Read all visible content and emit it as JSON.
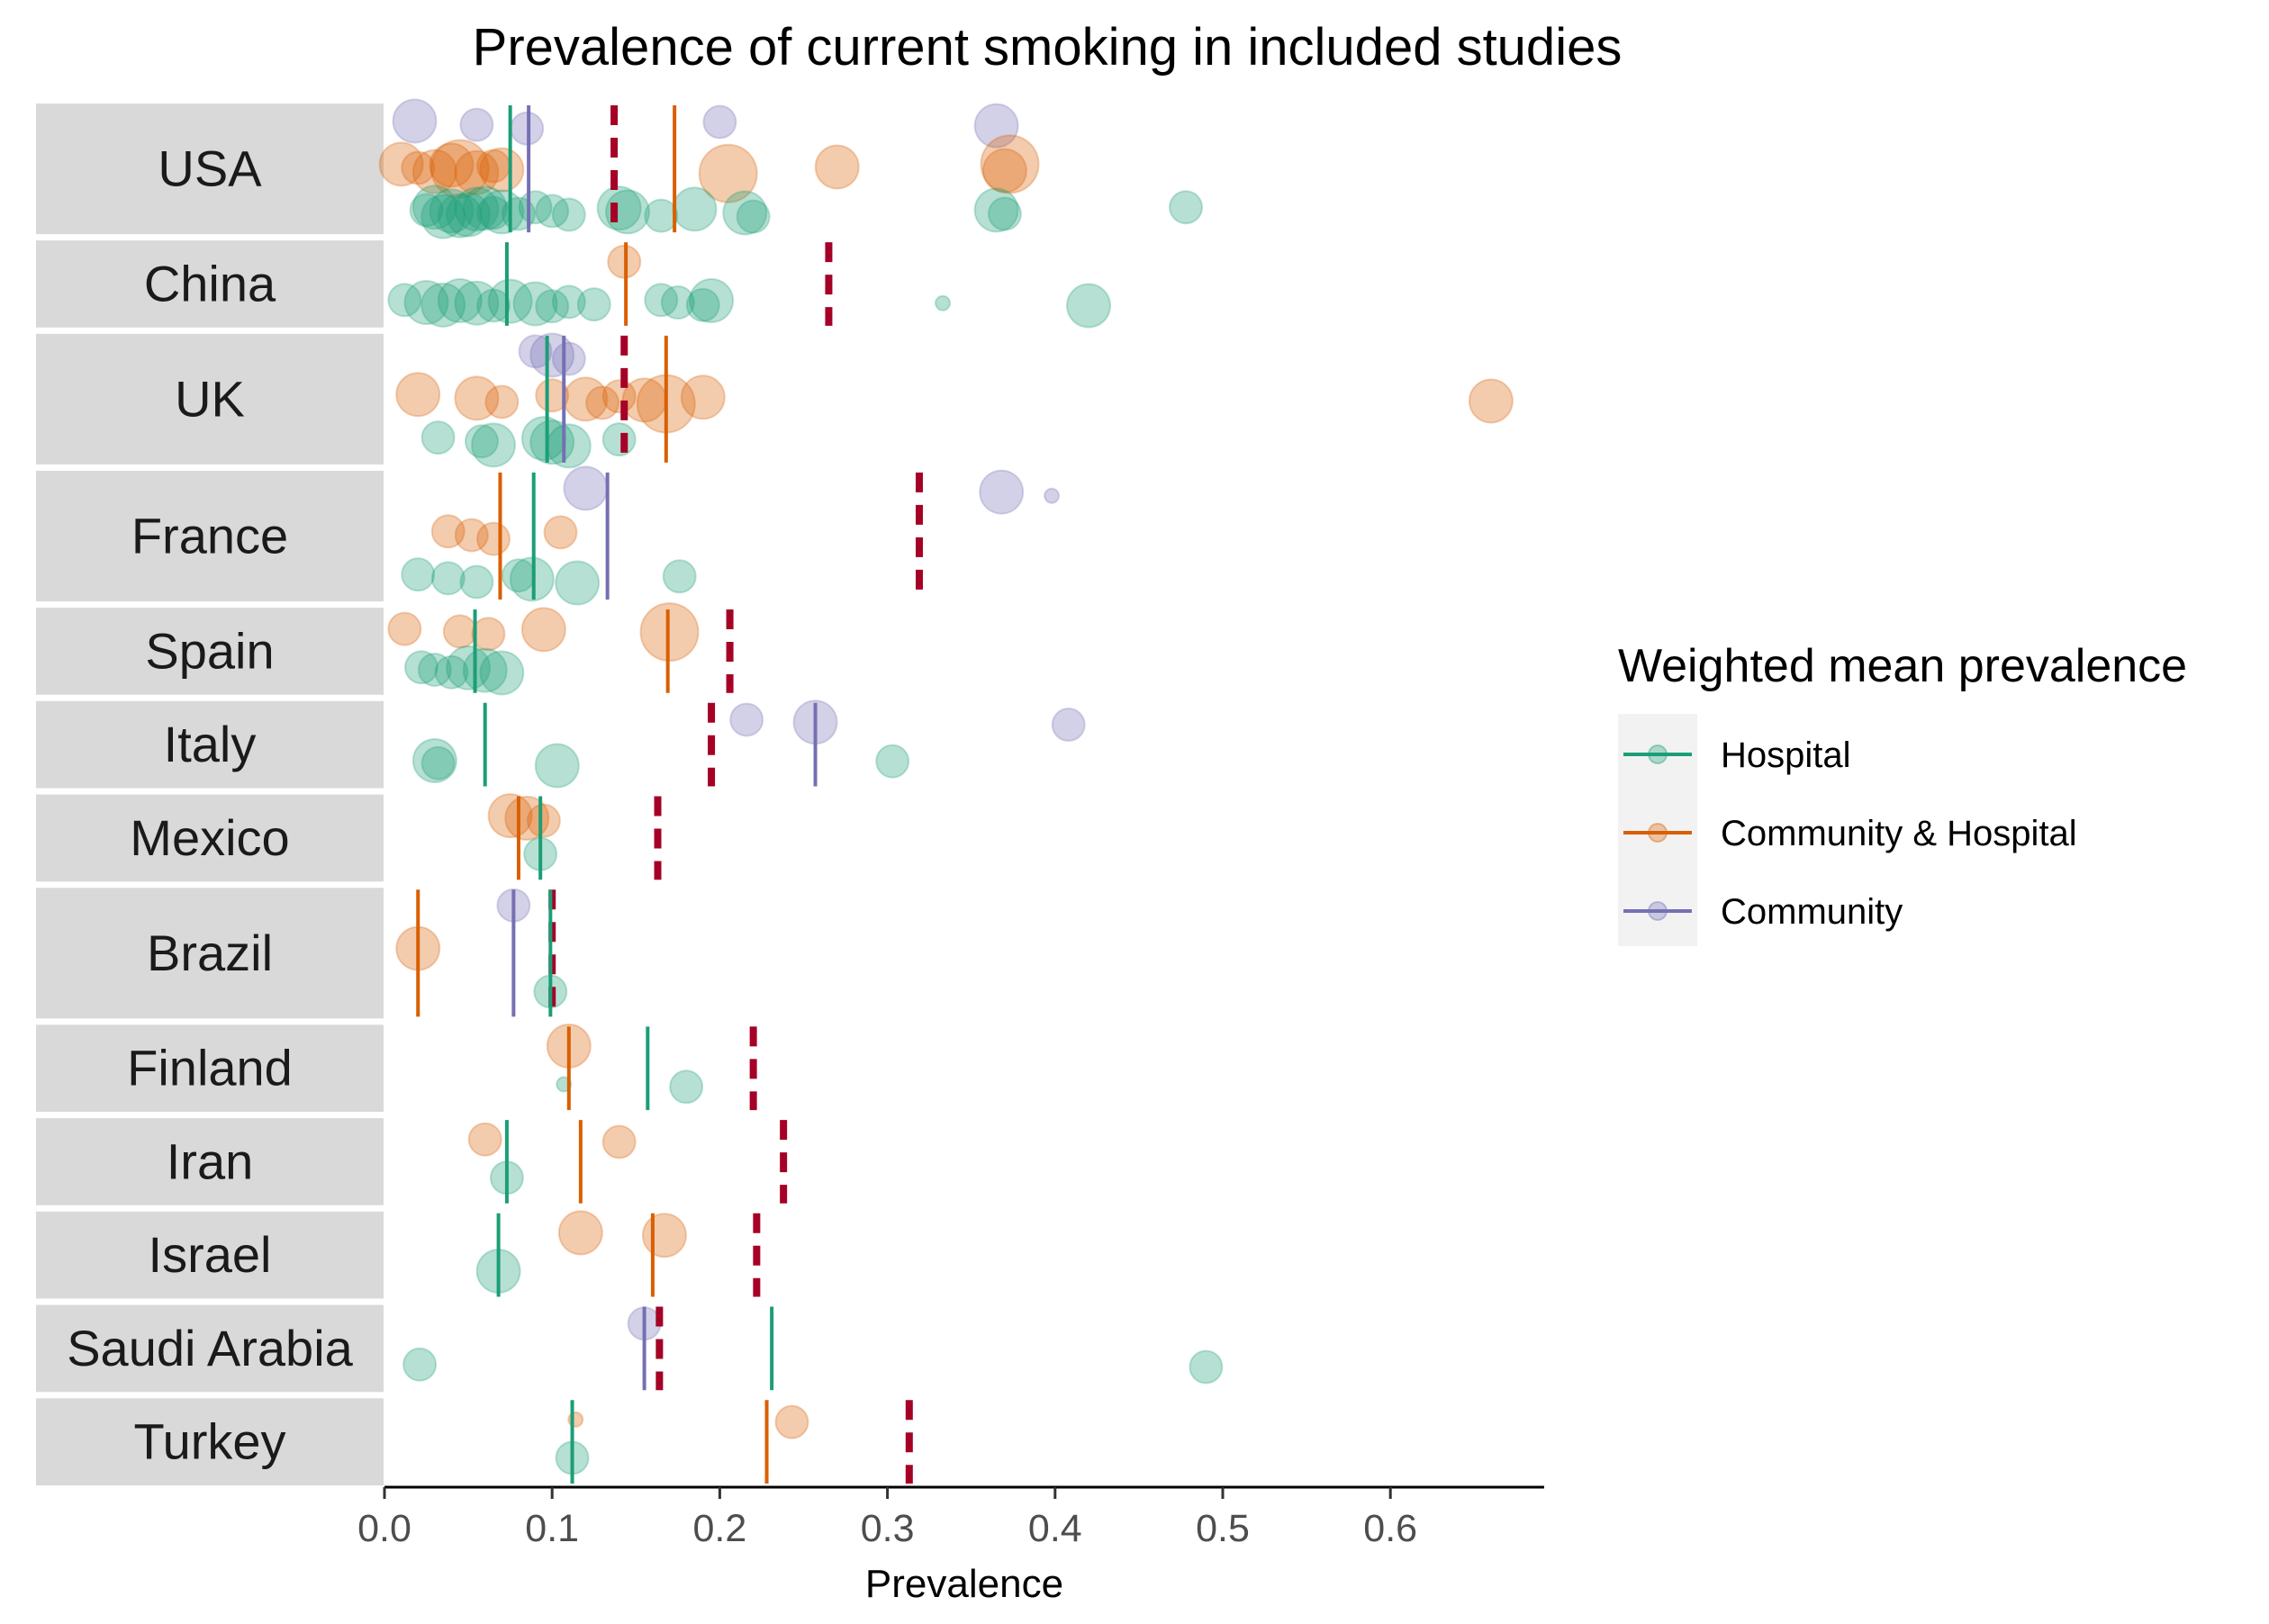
{
  "chart_data": {
    "type": "scatter",
    "title": "Prevalence of current smoking in included studies",
    "xlabel": "Prevalence",
    "ylabel": "",
    "xlim": [
      0,
      0.69
    ],
    "x_ticks": [
      "0.0",
      "0.1",
      "0.2",
      "0.3",
      "0.4",
      "0.5",
      "0.6"
    ],
    "x_tick_values": [
      0,
      0.1,
      0.2,
      0.3,
      0.4,
      0.5,
      0.6
    ],
    "grid": false,
    "legend": {
      "title": "Weighted mean prevalence",
      "position": "right",
      "entries": [
        {
          "label": "Hospital",
          "series": "hospital"
        },
        {
          "label": "Community & Hospital",
          "series": "community_hospital"
        },
        {
          "label": "Community",
          "series": "community"
        }
      ]
    },
    "colors": {
      "hospital": "#1b9e77",
      "community_hospital": "#d95f02",
      "community": "#7570b3",
      "country_reference": "#a50026",
      "strip_bg": "#d9d9d9",
      "legend_key_bg": "#f2f2f2"
    },
    "countries": [
      {
        "name": "USA",
        "height": 1.5,
        "reference": 0.137,
        "means": {
          "hospital": 0.075,
          "community_hospital": 0.173,
          "community": 0.086
        },
        "points": {
          "hospital": [
            [
              0.03,
              2
            ],
            [
              0.04,
              2
            ],
            [
              0.05,
              2
            ],
            [
              0.06,
              2
            ],
            [
              0.07,
              2
            ],
            [
              0.045,
              2
            ],
            [
              0.055,
              2
            ],
            [
              0.065,
              1
            ],
            [
              0.035,
              2
            ],
            [
              0.025,
              1
            ],
            [
              0.08,
              1
            ],
            [
              0.09,
              1
            ],
            [
              0.1,
              1
            ],
            [
              0.11,
              1
            ],
            [
              0.14,
              2
            ],
            [
              0.145,
              2
            ],
            [
              0.165,
              1
            ],
            [
              0.185,
              2
            ],
            [
              0.215,
              2
            ],
            [
              0.22,
              1
            ],
            [
              0.365,
              2
            ],
            [
              0.37,
              1
            ],
            [
              0.478,
              1
            ]
          ],
          "community_hospital": [
            [
              0.01,
              2
            ],
            [
              0.02,
              1
            ],
            [
              0.03,
              2
            ],
            [
              0.04,
              2
            ],
            [
              0.045,
              3
            ],
            [
              0.055,
              2
            ],
            [
              0.065,
              1
            ],
            [
              0.07,
              2
            ],
            [
              0.205,
              3
            ],
            [
              0.27,
              2
            ],
            [
              0.37,
              2
            ],
            [
              0.373,
              3
            ]
          ],
          "community": [
            [
              0.018,
              2
            ],
            [
              0.055,
              1
            ],
            [
              0.085,
              1
            ],
            [
              0.2,
              1
            ],
            [
              0.365,
              2
            ]
          ]
        }
      },
      {
        "name": "China",
        "height": 1.0,
        "reference": 0.265,
        "means": {
          "hospital": 0.073,
          "community_hospital": 0.144
        },
        "points": {
          "hospital": [
            [
              0.012,
              1
            ],
            [
              0.025,
              2
            ],
            [
              0.035,
              2
            ],
            [
              0.045,
              2
            ],
            [
              0.055,
              2
            ],
            [
              0.065,
              1
            ],
            [
              0.075,
              2
            ],
            [
              0.09,
              2
            ],
            [
              0.1,
              1
            ],
            [
              0.11,
              1
            ],
            [
              0.125,
              1
            ],
            [
              0.165,
              1
            ],
            [
              0.175,
              1
            ],
            [
              0.19,
              1
            ],
            [
              0.195,
              2
            ],
            [
              0.333,
              0
            ],
            [
              0.42,
              2
            ]
          ],
          "community_hospital": [
            [
              0.143,
              1
            ]
          ]
        }
      },
      {
        "name": "UK",
        "height": 1.5,
        "reference": 0.143,
        "means": {
          "hospital": 0.097,
          "community_hospital": 0.168,
          "community": 0.107
        },
        "points": {
          "hospital": [
            [
              0.032,
              1
            ],
            [
              0.058,
              1
            ],
            [
              0.065,
              2
            ],
            [
              0.095,
              2
            ],
            [
              0.1,
              2
            ],
            [
              0.11,
              2
            ],
            [
              0.14,
              1
            ]
          ],
          "community_hospital": [
            [
              0.02,
              2
            ],
            [
              0.055,
              2
            ],
            [
              0.07,
              1
            ],
            [
              0.1,
              1
            ],
            [
              0.12,
              2
            ],
            [
              0.13,
              1
            ],
            [
              0.14,
              1
            ],
            [
              0.155,
              2
            ],
            [
              0.168,
              3
            ],
            [
              0.19,
              2
            ],
            [
              0.66,
              2
            ]
          ],
          "community": [
            [
              0.09,
              1
            ],
            [
              0.1,
              2
            ],
            [
              0.11,
              1
            ]
          ]
        }
      },
      {
        "name": "France",
        "height": 1.5,
        "reference": 0.319,
        "means": {
          "hospital": 0.089,
          "community_hospital": 0.069,
          "community": 0.133
        },
        "points": {
          "hospital": [
            [
              0.02,
              1
            ],
            [
              0.038,
              1
            ],
            [
              0.055,
              1
            ],
            [
              0.08,
              1
            ],
            [
              0.088,
              2
            ],
            [
              0.115,
              2
            ],
            [
              0.176,
              1
            ]
          ],
          "community_hospital": [
            [
              0.038,
              1
            ],
            [
              0.052,
              1
            ],
            [
              0.065,
              1
            ],
            [
              0.105,
              1
            ]
          ],
          "community": [
            [
              0.12,
              2
            ],
            [
              0.368,
              2
            ],
            [
              0.398,
              0
            ]
          ]
        }
      },
      {
        "name": "Spain",
        "height": 1.0,
        "reference": 0.206,
        "means": {
          "hospital": 0.054,
          "community_hospital": 0.169
        },
        "points": {
          "hospital": [
            [
              0.022,
              1
            ],
            [
              0.03,
              1
            ],
            [
              0.04,
              1
            ],
            [
              0.05,
              2
            ],
            [
              0.06,
              2
            ],
            [
              0.07,
              2
            ]
          ],
          "community_hospital": [
            [
              0.012,
              1
            ],
            [
              0.045,
              1
            ],
            [
              0.062,
              1
            ],
            [
              0.095,
              2
            ],
            [
              0.17,
              3
            ]
          ]
        }
      },
      {
        "name": "Italy",
        "height": 1.0,
        "reference": 0.195,
        "means": {
          "hospital": 0.06,
          "community": 0.257
        },
        "points": {
          "hospital": [
            [
              0.03,
              2
            ],
            [
              0.032,
              1
            ],
            [
              0.103,
              2
            ],
            [
              0.303,
              1
            ]
          ],
          "community": [
            [
              0.216,
              1
            ],
            [
              0.257,
              2
            ],
            [
              0.408,
              1
            ]
          ]
        }
      },
      {
        "name": "Mexico",
        "height": 1.0,
        "reference": 0.163,
        "means": {
          "hospital": 0.093,
          "community_hospital": 0.08
        },
        "points": {
          "hospital": [
            [
              0.093,
              1
            ]
          ],
          "community_hospital": [
            [
              0.075,
              2
            ],
            [
              0.085,
              2
            ],
            [
              0.095,
              1
            ]
          ]
        }
      },
      {
        "name": "Brazil",
        "height": 1.5,
        "reference": 0.1,
        "means": {
          "hospital": 0.099,
          "community_hospital": 0.02,
          "community": 0.077
        },
        "points": {
          "hospital": [
            [
              0.099,
              1
            ]
          ],
          "community_hospital": [
            [
              0.02,
              2
            ]
          ],
          "community": [
            [
              0.077,
              1
            ]
          ]
        }
      },
      {
        "name": "Finland",
        "height": 1.0,
        "reference": 0.22,
        "means": {
          "hospital": 0.157,
          "community_hospital": 0.11
        },
        "points": {
          "hospital": [
            [
              0.107,
              0
            ],
            [
              0.18,
              1
            ]
          ],
          "community_hospital": [
            [
              0.11,
              2
            ]
          ]
        }
      },
      {
        "name": "Iran",
        "height": 1.0,
        "reference": 0.238,
        "means": {
          "hospital": 0.073,
          "community_hospital": 0.117
        },
        "points": {
          "hospital": [
            [
              0.073,
              1
            ]
          ],
          "community_hospital": [
            [
              0.06,
              1
            ],
            [
              0.14,
              1
            ]
          ]
        }
      },
      {
        "name": "Israel",
        "height": 1.0,
        "reference": 0.222,
        "means": {
          "hospital": 0.068,
          "community_hospital": 0.16
        },
        "points": {
          "hospital": [
            [
              0.068,
              2
            ]
          ],
          "community_hospital": [
            [
              0.117,
              2
            ],
            [
              0.167,
              2
            ]
          ]
        }
      },
      {
        "name": "Saudi Arabia",
        "height": 1.0,
        "reference": 0.164,
        "means": {
          "hospital": 0.231,
          "community": 0.155
        },
        "points": {
          "hospital": [
            [
              0.021,
              1
            ],
            [
              0.49,
              1
            ]
          ],
          "community": [
            [
              0.155,
              1
            ]
          ]
        }
      },
      {
        "name": "Turkey",
        "height": 1.0,
        "reference": 0.313,
        "means": {
          "hospital": 0.112,
          "community_hospital": 0.228
        },
        "points": {
          "hospital": [
            [
              0.112,
              1
            ]
          ],
          "community_hospital": [
            [
              0.114,
              0
            ],
            [
              0.243,
              1
            ]
          ]
        }
      }
    ]
  }
}
